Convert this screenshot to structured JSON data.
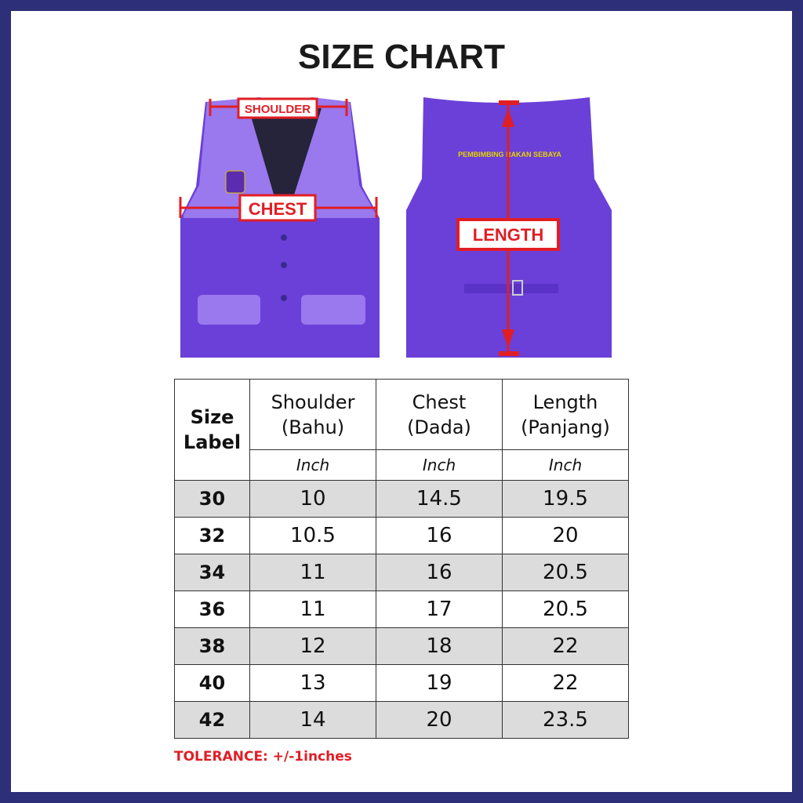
{
  "title": "SIZE CHART",
  "annotations": {
    "shoulder": "SHOULDER",
    "chest": "CHEST",
    "length": "LENGTH"
  },
  "vest_back_text": "PEMBIMBING RAKAN SEBAYA",
  "colors": {
    "frame": "#2d2f78",
    "accent_red": "#e01e25",
    "vest_purple": "#6a40d8",
    "vest_light": "#9a78ee",
    "row_grey": "#dcdcdc"
  },
  "table": {
    "header": {
      "size_label": [
        "Size",
        "Label"
      ],
      "columns": [
        {
          "name": "Shoulder",
          "local": "(Bahu)",
          "unit": "Inch"
        },
        {
          "name": "Chest",
          "local": "(Dada)",
          "unit": "Inch"
        },
        {
          "name": "Length",
          "local": "(Panjang)",
          "unit": "Inch"
        }
      ]
    },
    "rows": [
      {
        "size": "30",
        "shoulder": "10",
        "chest": "14.5",
        "length": "19.5"
      },
      {
        "size": "32",
        "shoulder": "10.5",
        "chest": "16",
        "length": "20"
      },
      {
        "size": "34",
        "shoulder": "11",
        "chest": "16",
        "length": "20.5"
      },
      {
        "size": "36",
        "shoulder": "11",
        "chest": "17",
        "length": "20.5"
      },
      {
        "size": "38",
        "shoulder": "12",
        "chest": "18",
        "length": "22"
      },
      {
        "size": "40",
        "shoulder": "13",
        "chest": "19",
        "length": "22"
      },
      {
        "size": "42",
        "shoulder": "14",
        "chest": "20",
        "length": "23.5"
      }
    ]
  },
  "tolerance": "TOLERANCE: +/-1inches"
}
